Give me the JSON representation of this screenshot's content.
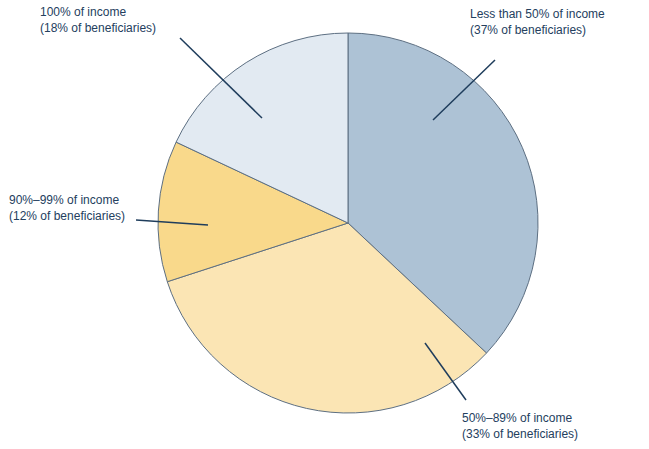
{
  "chart_data": {
    "type": "pie",
    "categories": [
      "Less than 50% of income",
      "50%–89% of income",
      "90%–99% of income",
      "100% of income"
    ],
    "values": [
      37,
      33,
      12,
      18
    ],
    "value_labels": [
      "(37% of beneficiaries)",
      "(33% of beneficiaries)",
      "(12% of beneficiaries)",
      "(18% of beneficiaries)"
    ],
    "colors": [
      "#adc2d5",
      "#fbe5b4",
      "#f9d98b",
      "#e2eaf2"
    ]
  }
}
